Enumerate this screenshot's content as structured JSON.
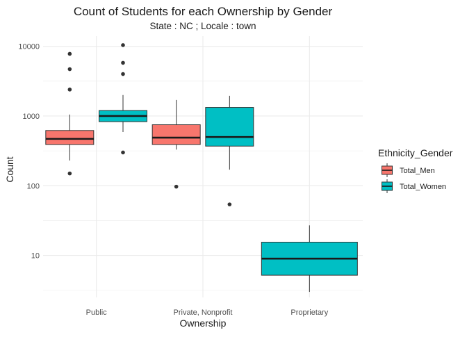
{
  "chart_data": {
    "type": "boxplot",
    "title": "Count of Students for each Ownership by Gender",
    "subtitle": "State : NC ; Locale : town",
    "xlabel": "Ownership",
    "ylabel": "Count",
    "yscale": "log10",
    "ylim": [
      2.5,
      14000
    ],
    "yticks": [
      10,
      100,
      1000,
      10000
    ],
    "ytick_labels": [
      "10",
      "100",
      "1000",
      "10000"
    ],
    "categories": [
      "Public",
      "Private, Nonprofit",
      "Proprietary"
    ],
    "grid": true,
    "legend": {
      "title": "Ethnicity_Gender",
      "position": "right"
    },
    "series": [
      {
        "name": "Total_Men",
        "color": "#F8766D",
        "boxes": [
          {
            "category": "Public",
            "min": 230,
            "q1": 390,
            "median": 470,
            "q3": 620,
            "max": 1050,
            "outliers": [
              150,
              2400,
              4700,
              7800
            ]
          },
          {
            "category": "Private, Nonprofit",
            "min": 330,
            "q1": 390,
            "median": 490,
            "q3": 750,
            "max": 1700,
            "outliers": [
              97
            ]
          }
        ]
      },
      {
        "name": "Total_Women",
        "color": "#00BFC4",
        "boxes": [
          {
            "category": "Public",
            "min": 590,
            "q1": 830,
            "median": 1000,
            "q3": 1200,
            "max": 2000,
            "outliers": [
              300,
              4000,
              5800,
              10400
            ]
          },
          {
            "category": "Private, Nonprofit",
            "min": 170,
            "q1": 370,
            "median": 500,
            "q3": 1330,
            "max": 1950,
            "outliers": [
              54
            ]
          },
          {
            "category": "Proprietary",
            "min": 3,
            "q1": 5.2,
            "median": 9,
            "q3": 15.5,
            "max": 27,
            "outliers": []
          }
        ]
      }
    ]
  }
}
